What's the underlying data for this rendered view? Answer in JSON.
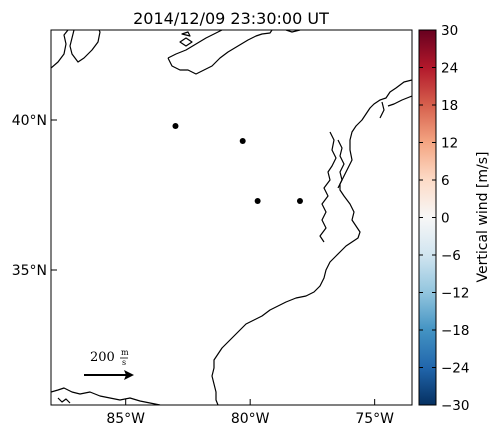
{
  "title": "2014/12/09 23:30:00 UT",
  "map": {
    "lon_range": [
      -88,
      -73.5
    ],
    "lat_range": [
      30.5,
      43
    ],
    "x_ticks": [
      {
        "lon": -85,
        "label": "85°W"
      },
      {
        "lon": -80,
        "label": "80°W"
      },
      {
        "lon": -75,
        "label": "75°W"
      }
    ],
    "y_ticks": [
      {
        "lat": 40,
        "label": "40°N"
      },
      {
        "lat": 35,
        "label": "35°N"
      }
    ],
    "stations": [
      {
        "lon": -83.0,
        "lat": 39.8
      },
      {
        "lon": -80.3,
        "lat": 39.3
      },
      {
        "lon": -79.7,
        "lat": 37.3
      },
      {
        "lon": -78.0,
        "lat": 37.3
      }
    ],
    "scale_vector": {
      "label_value": "200",
      "label_unit_num": "m",
      "label_unit_den": "s"
    }
  },
  "colorbar": {
    "label": "Vertical wind [m/s]",
    "min": -30,
    "max": 30,
    "ticks": [
      {
        "value": 30,
        "label": "30"
      },
      {
        "value": 24,
        "label": "24"
      },
      {
        "value": 18,
        "label": "18"
      },
      {
        "value": 12,
        "label": "12"
      },
      {
        "value": 6,
        "label": "6"
      },
      {
        "value": 0,
        "label": "0"
      },
      {
        "value": -6,
        "label": "−6"
      },
      {
        "value": -12,
        "label": "−12"
      },
      {
        "value": -18,
        "label": "−18"
      },
      {
        "value": -24,
        "label": "−24"
      },
      {
        "value": -30,
        "label": "−30"
      }
    ],
    "colormap": [
      "#053061",
      "#2166ac",
      "#4393c3",
      "#92c5de",
      "#d1e5f0",
      "#f7f7f7",
      "#fddbc7",
      "#f4a582",
      "#d6604d",
      "#b2182b",
      "#67001f"
    ]
  }
}
